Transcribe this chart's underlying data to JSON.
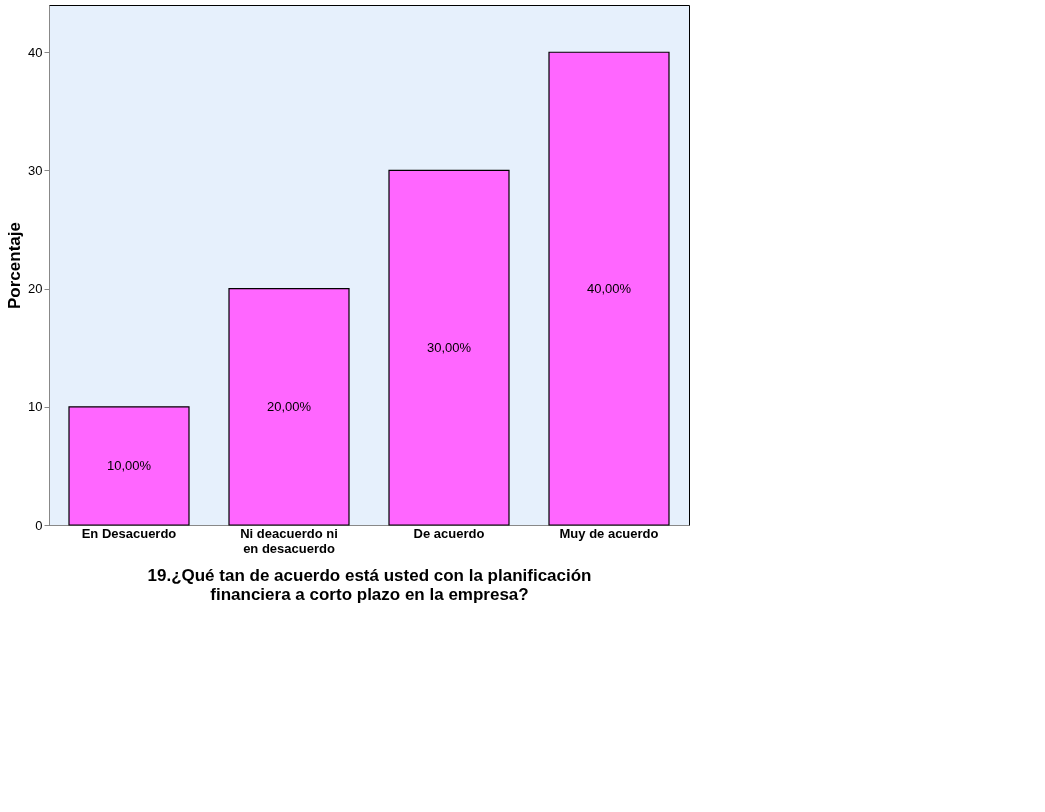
{
  "chart_data": {
    "type": "bar",
    "categories": [
      "En Desacuerdo",
      "Ni deacuerdo ni\nen desacuerdo",
      "De acuerdo",
      "Muy de acuerdo"
    ],
    "values": [
      10,
      20,
      30,
      40
    ],
    "value_labels": [
      "10,00%",
      "20,00%",
      "30,00%",
      "40,00%"
    ],
    "color": "#ff66ff",
    "ylabel": "Porcentaje",
    "xlabel": "19.¿Qué tan de acuerdo está usted con la planificación\nfinanciera a corto plazo en la empresa?",
    "ylim": [
      0,
      44
    ],
    "yticks": [
      0,
      10,
      20,
      30,
      40
    ],
    "grid": false
  }
}
